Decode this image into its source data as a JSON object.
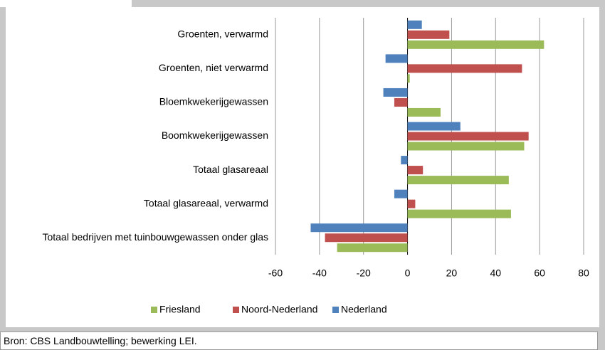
{
  "chart_data": {
    "type": "barh",
    "categories": [
      "Groenten, verwarmd",
      "Groenten, niet verwarmd",
      "Bloemkwekerijgewassen",
      "Boomkwekerijgewassen",
      "Totaal glasareaal",
      "Totaal glasareaal, verwarmd",
      "Totaal bedrijven met tuinbouwgewassen onder glas"
    ],
    "series": [
      {
        "name": "Friesland",
        "color": "#9bbb59",
        "values": [
          62,
          1,
          15,
          53,
          46,
          47,
          -32
        ]
      },
      {
        "name": "Noord-Nederland",
        "color": "#c0504d",
        "values": [
          19,
          52,
          -6,
          55,
          7,
          3.5,
          -37.5
        ]
      },
      {
        "name": "Nederland",
        "color": "#4f81bd",
        "values": [
          6.5,
          -10,
          -11,
          24,
          -3,
          -6,
          -44
        ]
      }
    ],
    "xlim": [
      -60,
      80
    ],
    "xticks": [
      -60,
      -40,
      -20,
      0,
      20,
      40,
      60,
      80
    ],
    "grid": true,
    "legend": "bottom"
  },
  "source": "Bron: CBS Landbouwtelling; bewerking LEI."
}
